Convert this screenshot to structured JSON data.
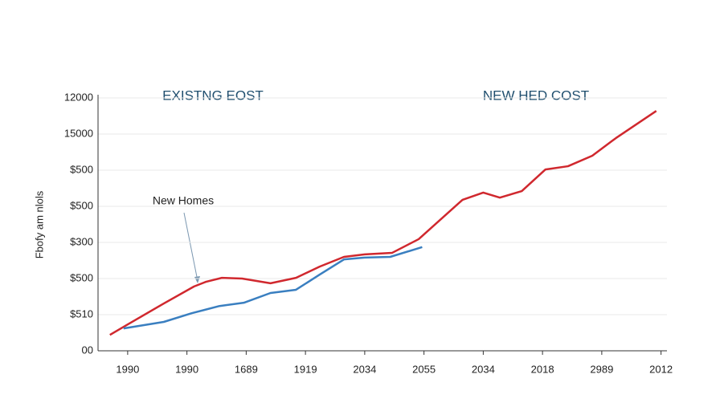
{
  "chart_data": {
    "type": "line",
    "y_label": "Fbofy am nlols",
    "annotations": [
      "EXISTNG EOST",
      "NEW HED COST",
      "New Homes"
    ],
    "xlim": [
      -0.5,
      9.1
    ],
    "xticks": [
      {
        "value": 0,
        "label": "1990"
      },
      {
        "value": 1,
        "label": "1990"
      },
      {
        "value": 2,
        "label": "1689"
      },
      {
        "value": 3,
        "label": "1919"
      },
      {
        "value": 4,
        "label": "2034"
      },
      {
        "value": 5,
        "label": "2055"
      },
      {
        "value": 6,
        "label": "2034"
      },
      {
        "value": 7,
        "label": "2018"
      },
      {
        "value": 8,
        "label": "2989"
      },
      {
        "value": 9,
        "label": "2012"
      }
    ],
    "ylim": [
      0,
      7
    ],
    "yticks": [
      {
        "value": 0,
        "label": "00"
      },
      {
        "value": 1,
        "label": "$510"
      },
      {
        "value": 2,
        "label": "$500"
      },
      {
        "value": 3,
        "label": "$300"
      },
      {
        "value": 4,
        "label": "$500"
      },
      {
        "value": 5,
        "label": "$500"
      },
      {
        "value": 6,
        "label": "15000"
      },
      {
        "value": 7,
        "label": "12000"
      }
    ],
    "grid": true,
    "series": [
      {
        "color": "#d0282e",
        "x": [
          -0.3,
          0,
          0.61,
          1.12,
          1.32,
          1.59,
          1.93,
          2.41,
          2.84,
          3.24,
          3.65,
          4.0,
          4.46,
          4.91,
          5.65,
          6.0,
          6.28,
          6.65,
          7.05,
          7.43,
          7.84,
          8.24,
          8.92
        ],
        "values": [
          0.44,
          0.73,
          1.31,
          1.78,
          1.91,
          2.02,
          2.0,
          1.87,
          2.02,
          2.33,
          2.6,
          2.67,
          2.71,
          3.09,
          4.18,
          4.38,
          4.24,
          4.42,
          5.02,
          5.11,
          5.4,
          5.89,
          6.64
        ]
      },
      {
        "color": "#3a7fc0",
        "x": [
          -0.07,
          0.61,
          1.08,
          1.55,
          1.96,
          2.41,
          2.84,
          3.24,
          3.65,
          4.0,
          4.43,
          4.97
        ],
        "values": [
          0.62,
          0.8,
          1.04,
          1.24,
          1.33,
          1.6,
          1.69,
          2.11,
          2.53,
          2.58,
          2.6,
          2.87
        ]
      }
    ]
  }
}
